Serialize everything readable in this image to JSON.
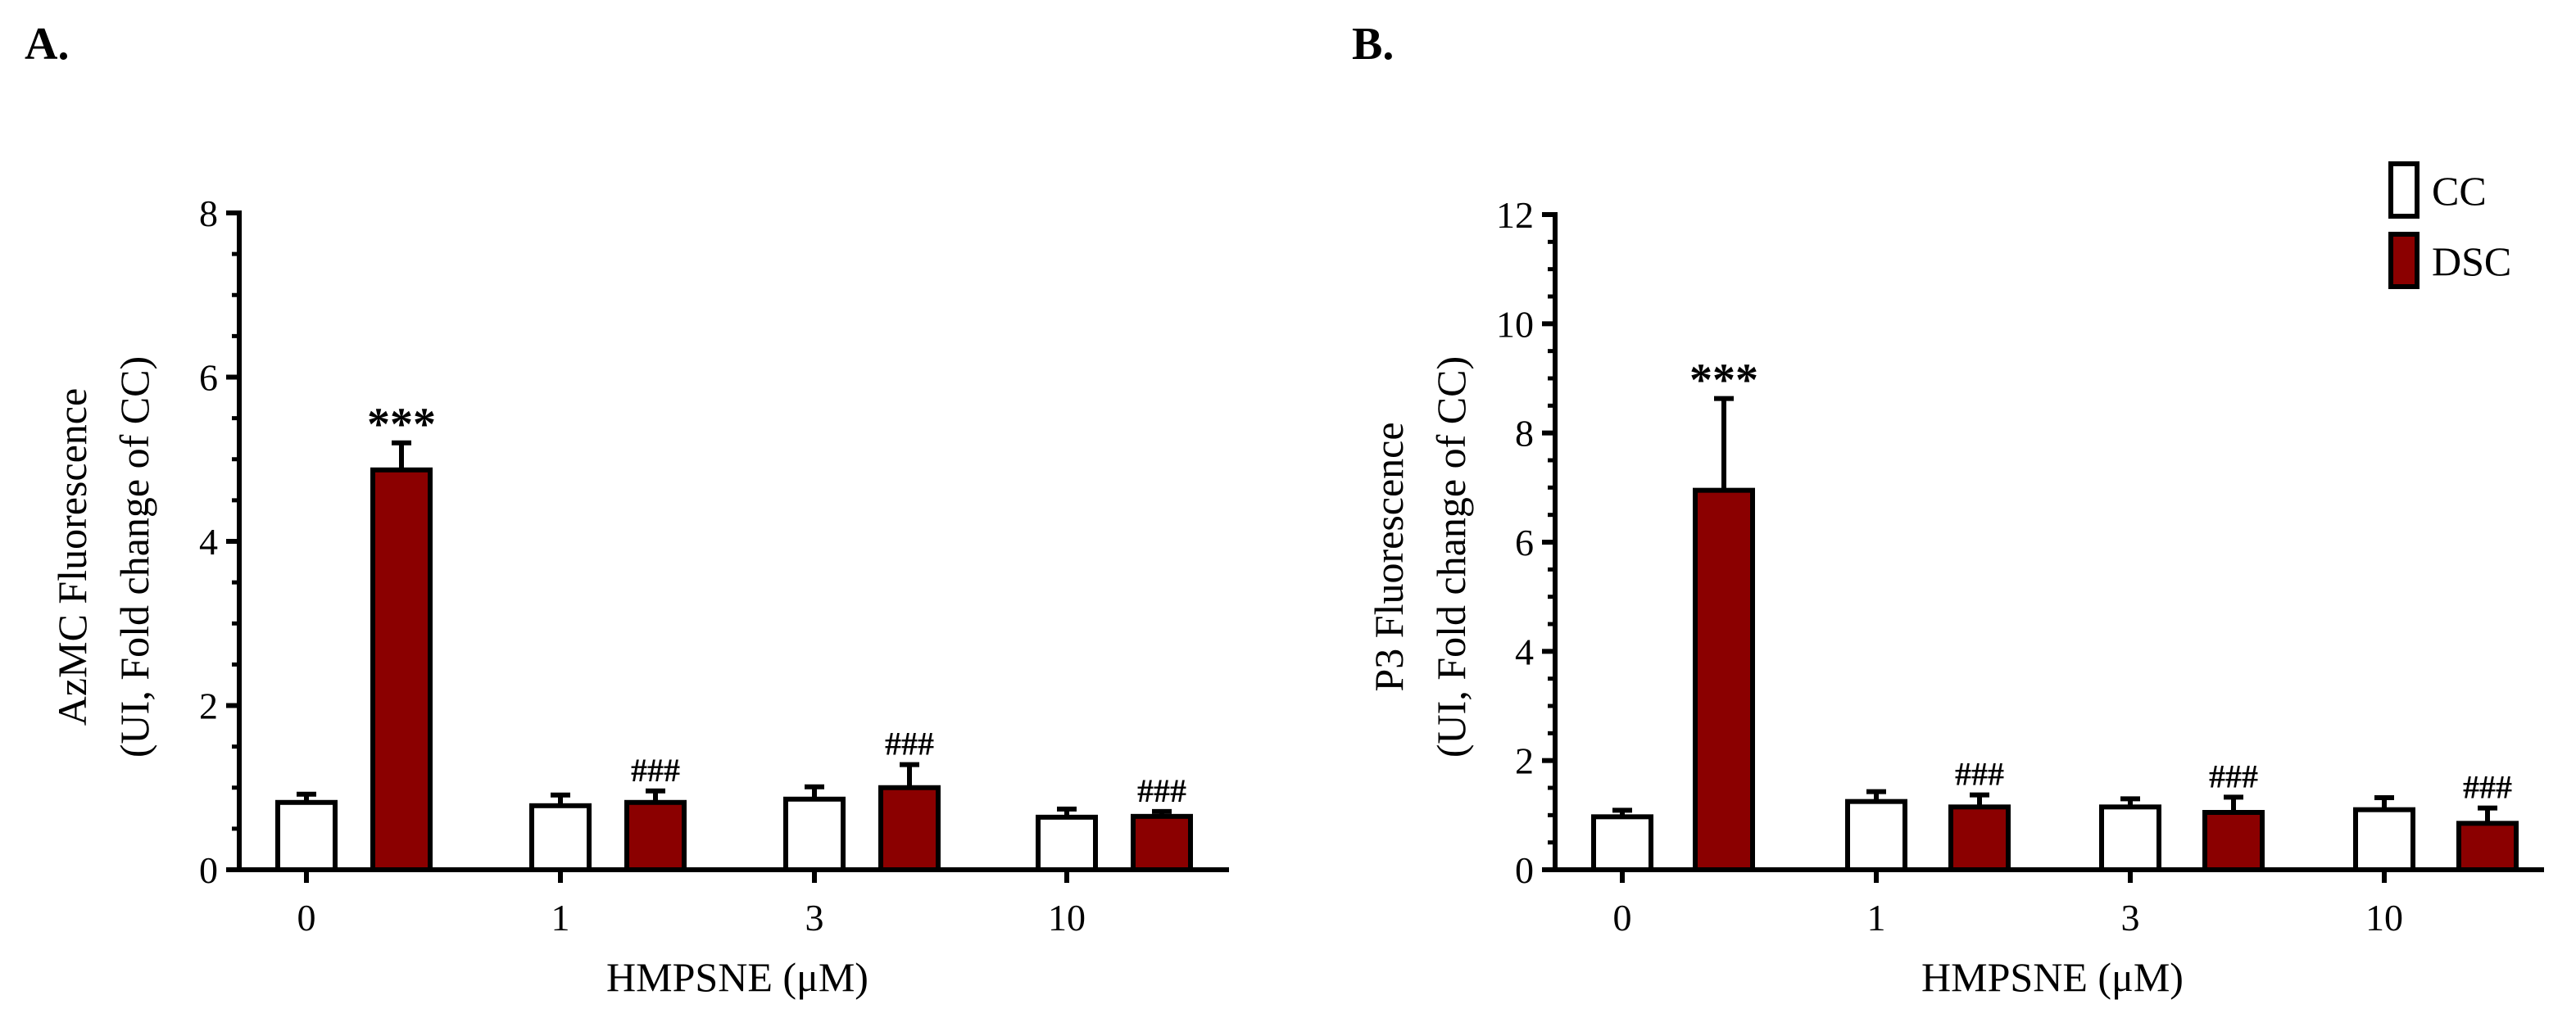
{
  "colors": {
    "cc_fill": "#ffffff",
    "dsc_fill": "#8b0000",
    "stroke": "#000000"
  },
  "legend": [
    {
      "name": "CC",
      "color": "#ffffff"
    },
    {
      "name": "DSC",
      "color": "#8b0000"
    }
  ],
  "legend_position": "top-right",
  "chart_data": [
    {
      "panel_label": "A.",
      "type": "bar",
      "categories": [
        "0",
        "1",
        "3",
        "10"
      ],
      "xlabel": "HMPSNE (μM)",
      "ylabel_line1": "AzMC Fluorescence",
      "ylabel_line2": "(UI,  Fold change of CC)",
      "ylim": [
        0,
        8
      ],
      "yticks": [
        "0",
        "2",
        "4",
        "6",
        "8"
      ],
      "series": [
        {
          "name": "CC",
          "values": [
            0.82,
            0.78,
            0.86,
            0.64
          ],
          "errors": [
            0.1,
            0.13,
            0.15,
            0.1
          ]
        },
        {
          "name": "DSC",
          "values": [
            4.87,
            0.82,
            1.0,
            0.65
          ],
          "errors": [
            0.33,
            0.14,
            0.28,
            0.06
          ]
        }
      ],
      "annotations": [
        {
          "text": "***",
          "category": "0",
          "series": "DSC"
        },
        {
          "text": "###",
          "category": "1",
          "series": "DSC"
        },
        {
          "text": "###",
          "category": "3",
          "series": "DSC"
        },
        {
          "text": "###",
          "category": "10",
          "series": "DSC"
        }
      ]
    },
    {
      "panel_label": "B.",
      "type": "bar",
      "categories": [
        "0",
        "1",
        "3",
        "10"
      ],
      "xlabel": "HMPSNE (μM)",
      "ylabel_line1": "P3 Fluorescence",
      "ylabel_line2": "(UI,  Fold change of CC)",
      "ylim": [
        0,
        12
      ],
      "yticks": [
        "0",
        "2",
        "4",
        "6",
        "8",
        "10",
        "12"
      ],
      "series": [
        {
          "name": "CC",
          "values": [
            0.97,
            1.25,
            1.15,
            1.1
          ],
          "errors": [
            0.12,
            0.18,
            0.15,
            0.22
          ]
        },
        {
          "name": "DSC",
          "values": [
            6.95,
            1.15,
            1.05,
            0.85
          ],
          "errors": [
            1.68,
            0.22,
            0.28,
            0.28
          ]
        }
      ],
      "annotations": [
        {
          "text": "***",
          "category": "0",
          "series": "DSC"
        },
        {
          "text": "###",
          "category": "1",
          "series": "DSC"
        },
        {
          "text": "###",
          "category": "3",
          "series": "DSC"
        },
        {
          "text": "###",
          "category": "10",
          "series": "DSC"
        }
      ]
    }
  ]
}
